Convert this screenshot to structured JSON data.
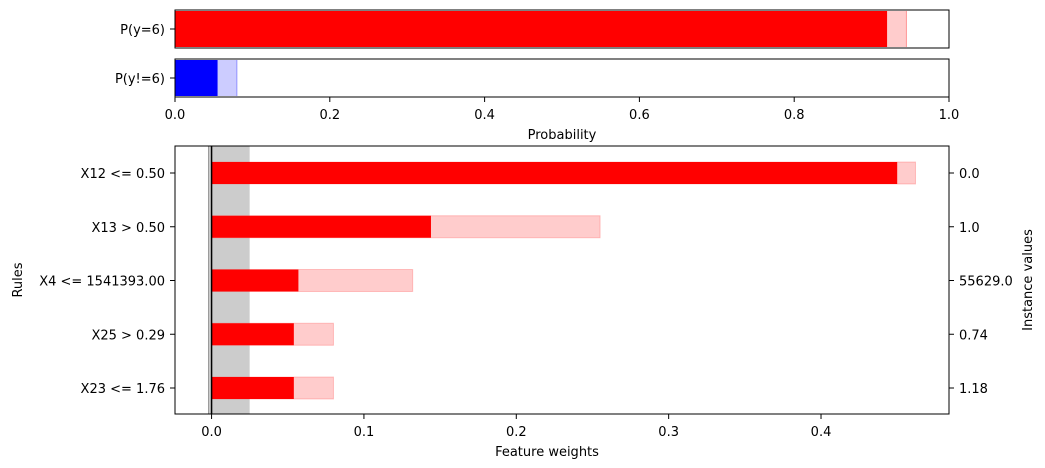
{
  "chart_data": [
    {
      "type": "bar",
      "orientation": "horizontal",
      "categories": [
        "P(y=6)",
        "P(y!=6)"
      ],
      "series": [
        {
          "values": [
            0.92,
            0.055
          ],
          "uncertainty_high": [
            0.945,
            0.08
          ]
        }
      ],
      "colors": {
        "P(y=6)": "#ff0000",
        "P(y!=6)": "#0000ff"
      },
      "xlabel": "Probability",
      "xlim": [
        0,
        1
      ],
      "xticks": [
        "0.0",
        "0.2",
        "0.4",
        "0.6",
        "0.8",
        "1.0"
      ]
    },
    {
      "type": "bar",
      "orientation": "horizontal",
      "categories": [
        "X12 <= 0.50",
        "X13 > 0.50",
        "X4 <= 1541393.00",
        "X25 > 0.29",
        "X23 <= 1.76"
      ],
      "instance_values": [
        "0.0",
        "1.0",
        "55629.0",
        "0.74",
        "1.18"
      ],
      "series": [
        {
          "values": [
            0.45,
            0.144,
            0.057,
            0.054,
            0.054
          ],
          "uncertainty_high": [
            0.462,
            0.255,
            0.132,
            0.08,
            0.08
          ]
        }
      ],
      "color": "#ff0000",
      "shaded_band": [
        -0.002,
        0.025
      ],
      "xlabel": "Feature weights",
      "ylabel": "Rules",
      "y2label": "Instance values",
      "xlim": [
        -0.024,
        0.484
      ],
      "xticks": [
        "0.0",
        "0.1",
        "0.2",
        "0.3",
        "0.4"
      ]
    }
  ]
}
